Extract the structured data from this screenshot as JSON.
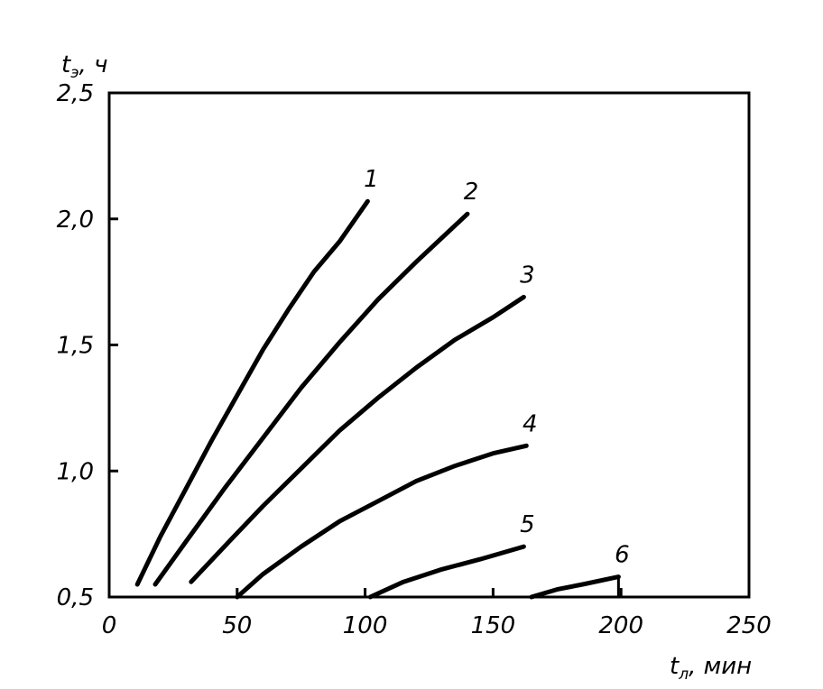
{
  "chart_data": {
    "type": "line",
    "ylabel": {
      "main": "t",
      "sub": "э",
      "unit": ", ч"
    },
    "xlabel": {
      "main": "t",
      "sub": "л",
      "unit": ", мин"
    },
    "xlim": [
      0,
      250
    ],
    "ylim": [
      0.5,
      2.5
    ],
    "xticks": [
      0,
      50,
      100,
      150,
      200,
      250
    ],
    "xtick_labels": [
      "0",
      "50",
      "100",
      "150",
      "200",
      "250"
    ],
    "yticks": [
      0.5,
      1.0,
      1.5,
      2.0,
      2.5
    ],
    "ytick_labels": [
      "0,5",
      "1,0",
      "1,5",
      "2,0",
      "2,5"
    ],
    "grid": false,
    "series": [
      {
        "name": "1",
        "x": [
          11,
          20,
          30,
          40,
          50,
          60,
          70,
          80,
          90,
          101
        ],
        "y": [
          0.55,
          0.74,
          0.93,
          1.12,
          1.3,
          1.48,
          1.64,
          1.79,
          1.91,
          2.07
        ]
      },
      {
        "name": "2",
        "x": [
          18,
          30,
          45,
          60,
          75,
          90,
          105,
          120,
          140
        ],
        "y": [
          0.55,
          0.72,
          0.93,
          1.13,
          1.33,
          1.51,
          1.68,
          1.83,
          2.02
        ]
      },
      {
        "name": "3",
        "x": [
          32,
          45,
          60,
          75,
          90,
          105,
          120,
          135,
          150,
          162
        ],
        "y": [
          0.56,
          0.7,
          0.86,
          1.01,
          1.16,
          1.29,
          1.41,
          1.52,
          1.61,
          1.69
        ]
      },
      {
        "name": "4",
        "x": [
          50,
          60,
          75,
          90,
          105,
          120,
          135,
          150,
          163
        ],
        "y": [
          0.5,
          0.59,
          0.7,
          0.8,
          0.88,
          0.96,
          1.02,
          1.07,
          1.1
        ]
      },
      {
        "name": "5",
        "x": [
          102,
          115,
          130,
          145,
          162
        ],
        "y": [
          0.5,
          0.56,
          0.61,
          0.65,
          0.7
        ]
      },
      {
        "name": "6",
        "x": [
          165,
          175,
          185,
          199
        ],
        "y": [
          0.5,
          0.53,
          0.55,
          0.58
        ]
      }
    ]
  }
}
